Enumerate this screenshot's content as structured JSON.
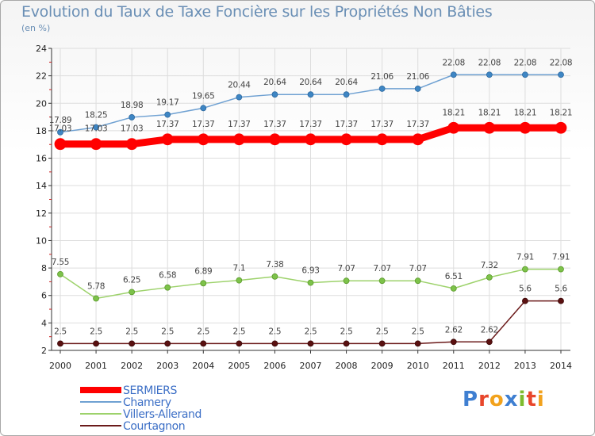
{
  "title": "Evolution du Taux de Taxe Foncière sur les Propriétés Non Bâties",
  "unit_label": "(en %)",
  "logo_text": "Proxiti",
  "colors": {
    "SERMIERS": "#ff0000",
    "Chamery": "#6fa1d2",
    "Villers-Allerand": "#9dd26b",
    "Courtagnon": "#6b1a1a",
    "Chamery_marker": "#3e86c4",
    "Villers_marker": "#7dc24a",
    "Courtagnon_marker": "#5a1010",
    "grid": "#dddddd",
    "axis": "#333333"
  },
  "chart_data": {
    "type": "line",
    "title": "Evolution du Taux de Taxe Foncière sur les Propriétés Non Bâties",
    "ylabel": "(en %)",
    "xlabel": "",
    "x": [
      2000,
      2001,
      2002,
      2003,
      2004,
      2005,
      2006,
      2007,
      2008,
      2009,
      2010,
      2011,
      2012,
      2013,
      2014
    ],
    "ylim": [
      2,
      24
    ],
    "yticks": [
      2,
      4,
      6,
      8,
      10,
      12,
      14,
      16,
      18,
      20,
      22,
      24
    ],
    "grid": true,
    "legend_position": "bottom-left",
    "series": [
      {
        "name": "SERMIERS",
        "values": [
          17.03,
          17.03,
          17.03,
          17.37,
          17.37,
          17.37,
          17.37,
          17.37,
          17.37,
          17.37,
          17.37,
          18.21,
          18.21,
          18.21,
          18.21
        ],
        "labels": [
          "17.03",
          "17.03",
          "17.03",
          "17.37",
          "17.37",
          "17.37",
          "17.37",
          "17.37",
          "17.37",
          "17.37",
          "17.37",
          "18.21",
          "18.21",
          "18.21",
          "18.21"
        ]
      },
      {
        "name": "Chamery",
        "values": [
          17.89,
          18.25,
          18.98,
          19.17,
          19.65,
          20.44,
          20.64,
          20.64,
          20.64,
          21.06,
          21.06,
          22.08,
          22.08,
          22.08,
          22.08
        ],
        "labels": [
          "17.89",
          "18.25",
          "18.98",
          "19.17",
          "19.65",
          "20.44",
          "20.64",
          "20.64",
          "20.64",
          "21.06",
          "21.06",
          "22.08",
          "22.08",
          "22.08",
          "22.08"
        ]
      },
      {
        "name": "Villers-Allerand",
        "values": [
          7.55,
          5.78,
          6.25,
          6.58,
          6.89,
          7.1,
          7.38,
          6.93,
          7.07,
          7.07,
          7.07,
          6.51,
          7.32,
          7.91,
          7.91
        ],
        "labels": [
          "7.55",
          "5.78",
          "6.25",
          "6.58",
          "6.89",
          "7.1",
          "7.38",
          "6.93",
          "7.07",
          "7.07",
          "7.07",
          "6.51",
          "7.32",
          "7.91",
          "7.91"
        ]
      },
      {
        "name": "Courtagnon",
        "values": [
          2.5,
          2.5,
          2.5,
          2.5,
          2.5,
          2.5,
          2.5,
          2.5,
          2.5,
          2.5,
          2.5,
          2.62,
          2.62,
          5.6,
          5.6
        ],
        "labels": [
          "2.5",
          "2.5",
          "2.5",
          "2.5",
          "2.5",
          "2.5",
          "2.5",
          "2.5",
          "2.5",
          "2.5",
          "2.5",
          "2.62",
          "2.62",
          "5.6",
          "5.6"
        ]
      }
    ]
  }
}
